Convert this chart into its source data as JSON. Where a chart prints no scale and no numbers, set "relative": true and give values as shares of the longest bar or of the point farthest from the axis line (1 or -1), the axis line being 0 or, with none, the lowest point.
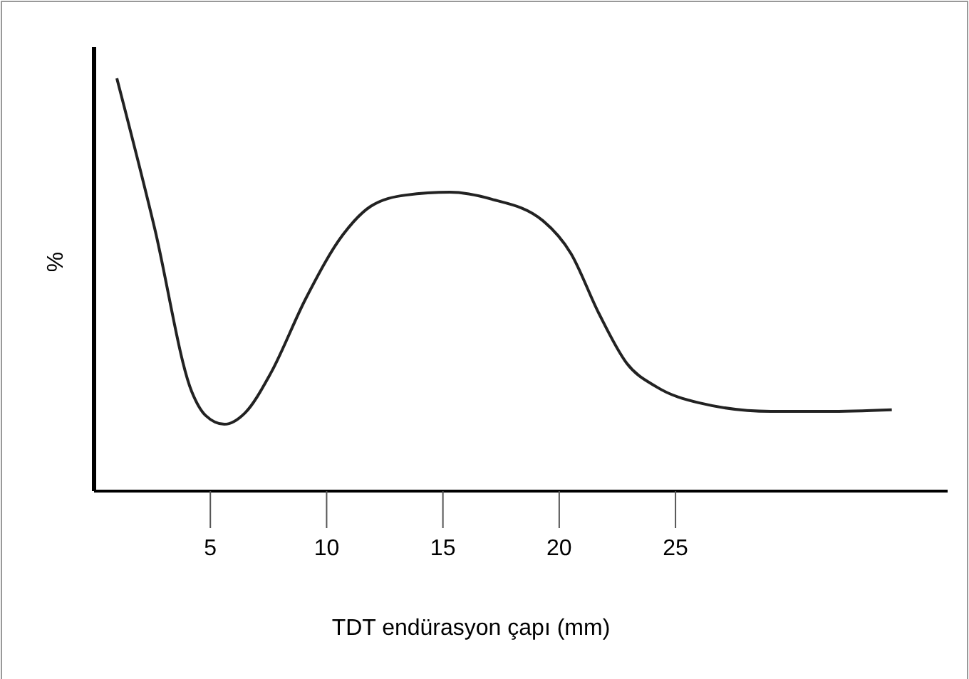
{
  "chart_data": {
    "type": "line",
    "xlabel": "TDT endürasyon çapı (mm)",
    "ylabel": "%",
    "relative": true,
    "xlim": [
      0,
      36.7
    ],
    "xticks": [
      5,
      10,
      15,
      20,
      25
    ],
    "color": "#222222",
    "x": [
      0.98,
      2.6,
      4.2,
      4.8,
      5.6,
      6.5,
      7.6,
      9.1,
      10.7,
      11.9,
      13.4,
      15.3,
      17.1,
      19.3,
      20.5,
      21.7,
      22.9,
      24.2,
      26.0,
      29.1,
      31.5,
      34.3
    ],
    "values": [
      1,
      0.638,
      0.241,
      0.183,
      0.162,
      0.19,
      0.286,
      0.466,
      0.621,
      0.69,
      0.717,
      0.724,
      0.707,
      0.655,
      0.576,
      0.431,
      0.31,
      0.252,
      0.214,
      0.193,
      0.193,
      0.197
    ]
  }
}
